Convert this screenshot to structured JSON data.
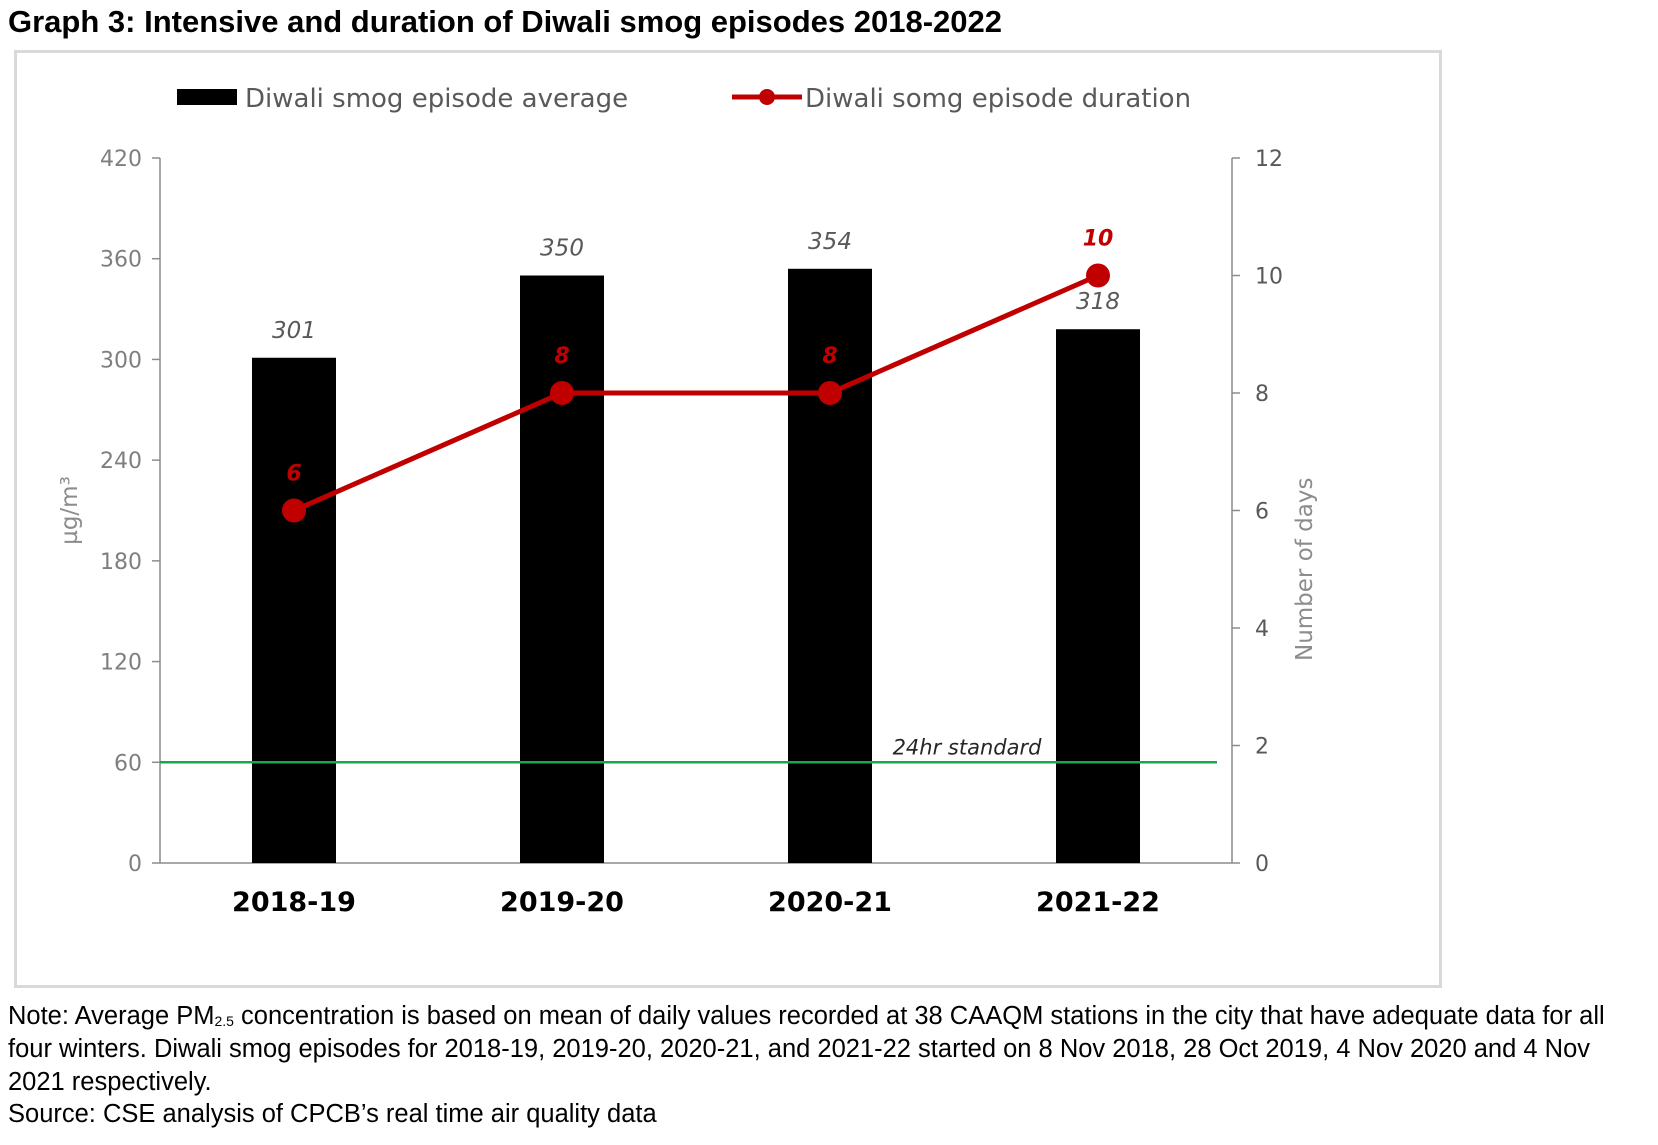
{
  "title": "Graph 3: Intensive and duration of Diwali smog episodes 2018-2022",
  "note": {
    "prefix": "Note: Average PM",
    "sub": "2.5",
    "rest": " concentration is based on mean of daily values recorded at 38 CAAQM stations in the city that have adequate data for all four winters. Diwali smog episodes for 2018-19, 2019-20, 2020-21, and 2021-22 started on 8 Nov 2018, 28 Oct 2019, 4 Nov 2020 and 4 Nov 2021 respectively."
  },
  "source": "Source: CSE analysis of CPCB’s real time air quality data",
  "chart_data": {
    "type": "bar",
    "categories": [
      "2018-19",
      "2019-20",
      "2020-21",
      "2021-22"
    ],
    "series": [
      {
        "name": "Diwali smog episode average",
        "type": "bar",
        "axis": "left",
        "color": "#000000",
        "values": [
          301,
          350,
          354,
          318
        ],
        "labels": [
          "301",
          "350",
          "354",
          "318"
        ]
      },
      {
        "name": "Diwali somg episode duration",
        "type": "line",
        "axis": "right",
        "color": "#c00000",
        "values": [
          6,
          8,
          8,
          10
        ],
        "labels": [
          "6",
          "8",
          "8",
          "10"
        ]
      }
    ],
    "reference_line": {
      "label": "24hr standard",
      "value": 60,
      "color": "#1aa64a"
    },
    "ylabel": "µg/m³",
    "y2label": "Number of days",
    "ylim": [
      0,
      420
    ],
    "yticks": [
      0,
      60,
      120,
      180,
      240,
      300,
      360,
      420
    ],
    "y2lim": [
      0,
      12
    ],
    "y2ticks": [
      0,
      2,
      4,
      6,
      8,
      10,
      12
    ],
    "legend": "top",
    "grid": false
  }
}
